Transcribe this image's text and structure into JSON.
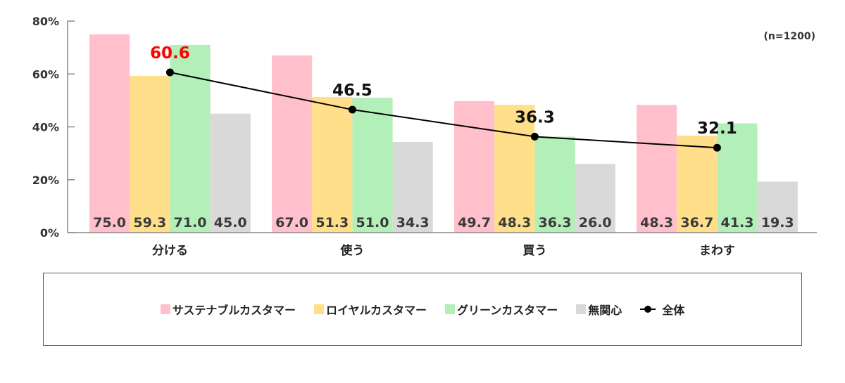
{
  "chart_data": {
    "type": "bar",
    "categories": [
      "分ける",
      "使う",
      "買う",
      "まわす"
    ],
    "series": [
      {
        "name": "サステナブルカスタマー",
        "color": "#ffc0cb",
        "values": [
          75.0,
          67.0,
          49.7,
          48.3
        ]
      },
      {
        "name": "ロイヤルカスタマー",
        "color": "#ffdf8a",
        "values": [
          59.3,
          51.3,
          48.3,
          36.7
        ]
      },
      {
        "name": "グリーンカスタマー",
        "color": "#b3efb8",
        "values": [
          71.0,
          51.0,
          36.3,
          41.3
        ]
      },
      {
        "name": "無関心",
        "color": "#d9d9d9",
        "values": [
          45.0,
          34.3,
          26.0,
          19.3
        ]
      }
    ],
    "line": {
      "name": "全体",
      "type": "line",
      "color": "#000000",
      "values": [
        60.6,
        46.5,
        36.3,
        32.1
      ],
      "highlight_color": "#ff0000",
      "highlight_index": 0
    },
    "ylim": [
      0,
      80
    ],
    "yticks": [
      "0%",
      "20%",
      "40%",
      "60%",
      "80%"
    ],
    "note": "(n=1200)",
    "legend_position": "bottom",
    "grid": false
  }
}
